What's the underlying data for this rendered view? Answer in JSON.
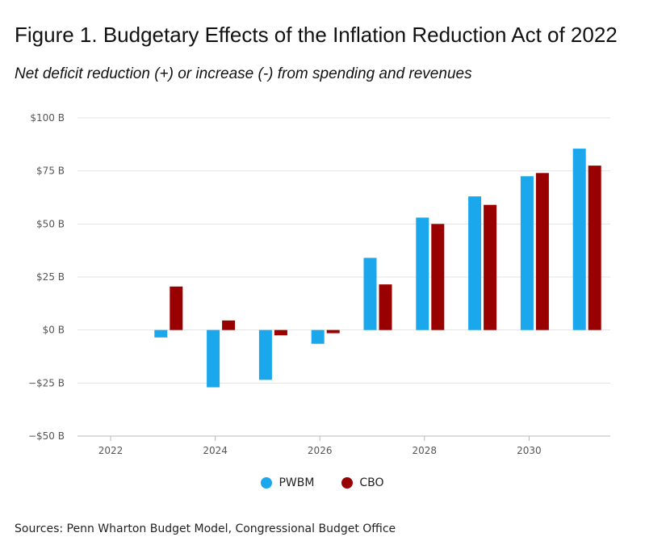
{
  "chart_data": {
    "type": "bar",
    "title": "Figure 1. Budgetary Effects of the Inflation Reduction Act of 2022",
    "subtitle": "Net deficit reduction (+) or increase (-) from spending and revenues",
    "categories": [
      2022,
      2023,
      2024,
      2025,
      2026,
      2027,
      2028,
      2029,
      2030,
      2031
    ],
    "series": [
      {
        "name": "PWBM",
        "color": "#1aa7ec",
        "values": [
          0,
          -3.5,
          -27,
          -23.5,
          -6.5,
          34,
          53,
          63,
          72.5,
          85.5
        ]
      },
      {
        "name": "CBO",
        "color": "#990000",
        "values": [
          0,
          20.5,
          4.5,
          -2.5,
          -1.5,
          21.5,
          50,
          59,
          74,
          77.5
        ]
      }
    ],
    "x_ticks": [
      "2022",
      "2024",
      "2026",
      "2028",
      "2030"
    ],
    "y_ticks": [
      {
        "value": 100,
        "label": "$100 B"
      },
      {
        "value": 75,
        "label": "$75 B"
      },
      {
        "value": 50,
        "label": "$50 B"
      },
      {
        "value": 25,
        "label": "$25 B"
      },
      {
        "value": 0,
        "label": "$0 B"
      },
      {
        "value": -25,
        "label": "−$25 B"
      },
      {
        "value": -50,
        "label": "−$50 B"
      }
    ],
    "ylim": [
      -50,
      100
    ],
    "xlabel": "",
    "ylabel": "",
    "legend_position": "bottom-center",
    "grid": true
  },
  "source_text": "Sources: Penn Wharton Budget Model, Congressional Budget Office"
}
